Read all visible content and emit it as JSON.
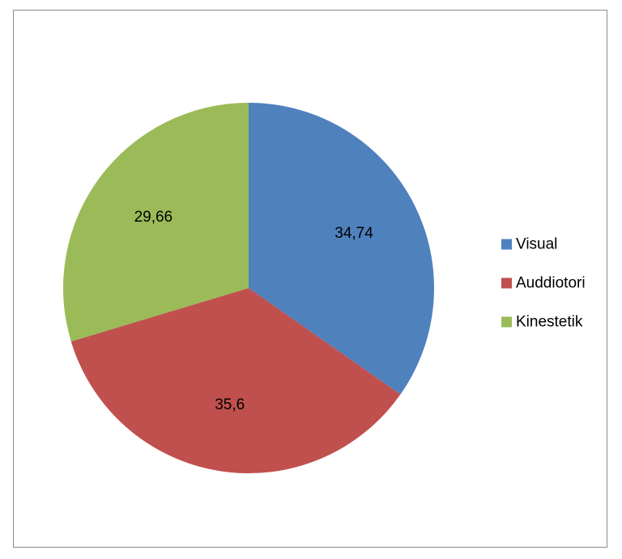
{
  "chart_data": {
    "type": "pie",
    "title": "",
    "categories": [
      "Visual",
      "Auddiotori",
      "Kinestetik"
    ],
    "values": [
      34.74,
      35.6,
      29.66
    ],
    "value_labels": [
      "34,74",
      "35,6",
      "29,66"
    ],
    "colors": [
      "#4f81bd",
      "#c0504d",
      "#9bbb59"
    ],
    "start_angle": "12 o'clock, clockwise",
    "legend": "right"
  }
}
